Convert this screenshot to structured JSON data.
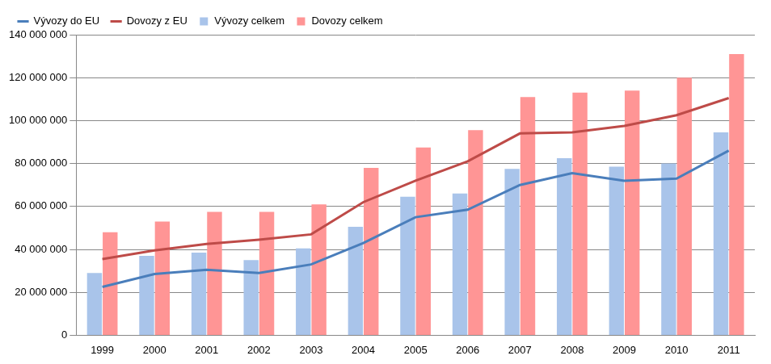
{
  "chart_data": {
    "type": "bar",
    "categories": [
      "1999",
      "2000",
      "2001",
      "2002",
      "2003",
      "2004",
      "2005",
      "2006",
      "2007",
      "2008",
      "2009",
      "2010",
      "2011"
    ],
    "series": [
      {
        "name": "Vývozy celkem",
        "type": "bar",
        "color": "#a9c4ea",
        "values": [
          29000000,
          37000000,
          38500000,
          35000000,
          40500000,
          50500000,
          64500000,
          66000000,
          77500000,
          82500000,
          78500000,
          80000000,
          94500000
        ]
      },
      {
        "name": "Dovozy celkem",
        "type": "bar",
        "color": "#ff9595",
        "values": [
          48000000,
          53000000,
          57500000,
          57500000,
          61000000,
          78000000,
          87500000,
          95500000,
          111000000,
          113000000,
          114000000,
          120000000,
          131000000
        ]
      },
      {
        "name": "Vývozy do EU",
        "type": "line",
        "color": "#4a7ebb",
        "marker": "none",
        "line_style": "solid",
        "values": [
          22500000,
          28500000,
          30500000,
          29000000,
          33000000,
          43000000,
          55000000,
          58500000,
          70000000,
          75500000,
          72000000,
          73000000,
          86000000
        ]
      },
      {
        "name": "Dovozy z EU",
        "type": "line",
        "color": "#be4b48",
        "marker": "none",
        "line_style": "solid",
        "values": [
          35500000,
          39500000,
          42500000,
          44500000,
          47000000,
          62000000,
          72000000,
          81000000,
          94000000,
          94500000,
          97500000,
          102500000,
          110500000
        ]
      }
    ],
    "ylim": [
      0,
      140000000
    ],
    "yticks": [
      0,
      {
        "value": 20000000,
        "label": "20 000 000"
      },
      {
        "value": 40000000,
        "label": "40 000 000"
      },
      {
        "value": 60000000,
        "label": "60 000 000"
      },
      {
        "value": 80000000,
        "label": "80 000 000"
      },
      {
        "value": 100000000,
        "label": "100 000 000"
      },
      {
        "value": 120000000,
        "label": "120 000 000"
      },
      {
        "value": 140000000,
        "label": "140 000 000"
      }
    ],
    "grid": true,
    "legend": "upper left"
  }
}
